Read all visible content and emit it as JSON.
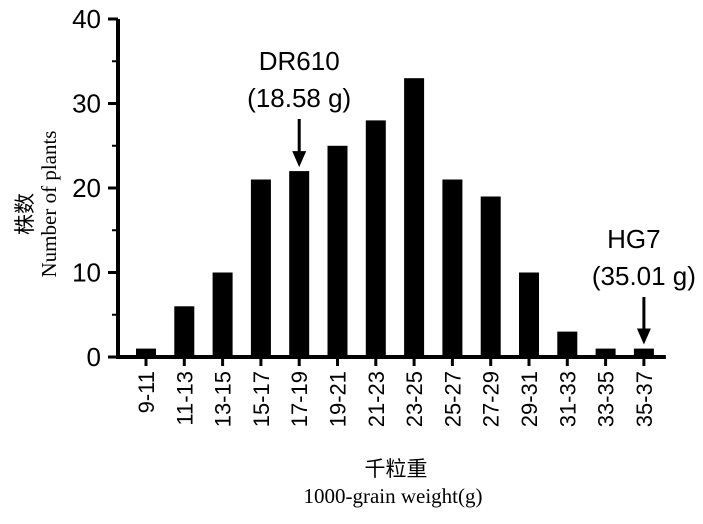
{
  "chart_data": {
    "type": "bar",
    "title": "",
    "xlabel_cn": "千粒重",
    "xlabel": "1000-grain weight(g)",
    "ylabel_cn": "株数",
    "ylabel": "Number of plants",
    "ylim": [
      0,
      40
    ],
    "yticks": [
      "0",
      "10",
      "20",
      "30",
      "40"
    ],
    "categories": [
      "9-11",
      "11-13",
      "13-15",
      "15-17",
      "17-19",
      "19-21",
      "21-23",
      "23-25",
      "25-27",
      "27-29",
      "29-31",
      "31-33",
      "33-35",
      "35-37"
    ],
    "values": [
      1,
      6,
      10,
      21,
      22,
      25,
      28,
      33,
      21,
      19,
      10,
      3,
      1,
      1
    ],
    "bar_color": "#000000",
    "annotations": [
      {
        "name": "DR610",
        "value_text": "(18.58 g)",
        "category_index": 4
      },
      {
        "name": "HG7",
        "value_text": "(35.01 g)",
        "category_index": 13
      }
    ]
  }
}
